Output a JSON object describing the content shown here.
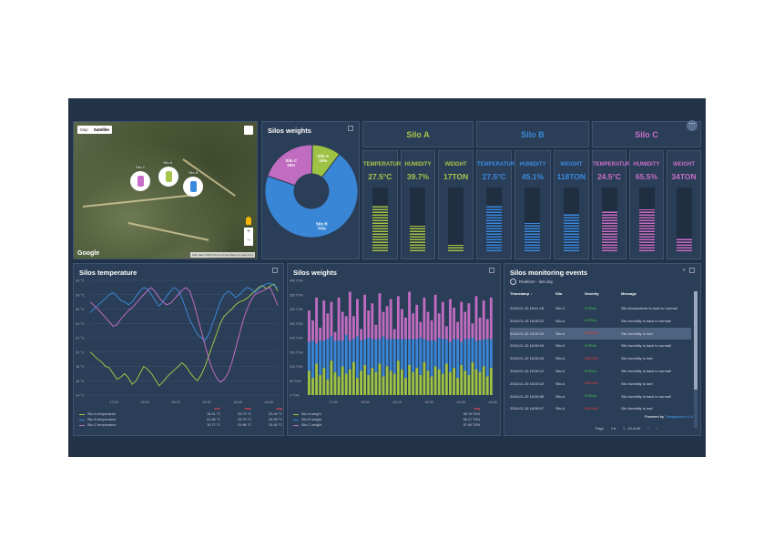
{
  "map": {
    "map_tab": "Map",
    "satellite_tab": "Satellite",
    "google_logo": "Google",
    "terms": "Map data ©2018 Terms of Use Report a map error",
    "markers": [
      {
        "label": "Silo C",
        "color": "#c86ec8"
      },
      {
        "label": "Silo A",
        "color": "#a6c44a"
      },
      {
        "label": "Silo B",
        "color": "#3a8ae0"
      }
    ]
  },
  "weights_donut": {
    "title": "Silos weights",
    "chart_data": {
      "type": "pie",
      "title": "Silos weights",
      "slices": [
        {
          "name": "Silo A",
          "percent": 10,
          "label": "Silo A\n10%",
          "color": "#9ec244"
        },
        {
          "name": "Silo B",
          "percent": 70,
          "label": "Silo B\n70%",
          "color": "#3a86d6"
        },
        {
          "name": "Silo C",
          "percent": 20,
          "label": "Silo C\n20%",
          "color": "#c06cc0"
        }
      ]
    }
  },
  "silos": [
    {
      "name": "Silo A",
      "color": "#a6c44a",
      "gauges": [
        {
          "label": "TEMPERATURE",
          "value": "27.5°C",
          "fill": 0.72
        },
        {
          "label": "HUMIDITY",
          "value": "39.7%",
          "fill": 0.4
        },
        {
          "label": "WEIGHT",
          "value": "17TON",
          "fill": 0.1
        }
      ]
    },
    {
      "name": "Silo B",
      "color": "#3a8ae0",
      "gauges": [
        {
          "label": "TEMPERATURE",
          "value": "27.5°C",
          "fill": 0.72
        },
        {
          "label": "HUMIDITY",
          "value": "45.1%",
          "fill": 0.45
        },
        {
          "label": "WEIGHT",
          "value": "118TON",
          "fill": 0.6
        }
      ]
    },
    {
      "name": "Silo C",
      "color": "#c86ec8",
      "gauges": [
        {
          "label": "TEMPERATURE",
          "value": "24.5°C",
          "fill": 0.64
        },
        {
          "label": "HUMIDITY",
          "value": "65.5%",
          "fill": 0.66
        },
        {
          "label": "WEIGHT",
          "value": "34TON",
          "fill": 0.2
        }
      ]
    }
  ],
  "temp_chart": {
    "title": "Silos temperature",
    "legend_headers": [
      "min",
      "max",
      "avg"
    ],
    "chart_data": {
      "type": "line",
      "title": "Silos temperature",
      "ylim": [
        14,
        30
      ],
      "yticks": [
        "14 °C",
        "16 °C",
        "18 °C",
        "20 °C",
        "22 °C",
        "24 °C",
        "26 °C",
        "28 °C",
        "30 °C"
      ],
      "xticks": [
        "17:00",
        "18:00",
        "18:15",
        "18:30",
        "18:45",
        "18:46"
      ],
      "series": [
        {
          "name": "Silo A temperature",
          "color": "#9ec244",
          "min": "15.01 °C",
          "max": "29.79 °C",
          "avg": "22.04 °C",
          "values": [
            20,
            19.5,
            19,
            18.6,
            18,
            17.8,
            17,
            16.2,
            16.5,
            17,
            16.4,
            15.5,
            16,
            17,
            18,
            17.6,
            17,
            16.2,
            15.3,
            15.8,
            16.5,
            17,
            17.5,
            18,
            18.5,
            18,
            17.2,
            16.5,
            16,
            16.8,
            18,
            19.5,
            21,
            22.5,
            24,
            25,
            25.5,
            26,
            26.6,
            27,
            27.2,
            27.5,
            28,
            28.5,
            29,
            29.3,
            28.8,
            29.2,
            29.5,
            28.5
          ]
        },
        {
          "name": "Silo B temperature",
          "color": "#3a86d6",
          "min": "21.45 °C",
          "max": "29.75 °C",
          "avg": "26.99 °C",
          "values": [
            25.5,
            26,
            26.5,
            27,
            27.5,
            28,
            28.3,
            27.8,
            27.2,
            27,
            26.6,
            27,
            27.8,
            28.5,
            29,
            28.8,
            28,
            27.2,
            26.4,
            27,
            27.8,
            28.5,
            29,
            28.6,
            27.5,
            26,
            24.5,
            23.5,
            22.5,
            22,
            21.6,
            22.5,
            24,
            25.5,
            27,
            28,
            28.5,
            28.2,
            27.6,
            28,
            28.6,
            29,
            28.8,
            28.3,
            28.8,
            29.2,
            29.5,
            29.6,
            29.3,
            29
          ]
        },
        {
          "name": "Silo C temperature",
          "color": "#c06cc0",
          "min": "15.77 °C",
          "max": "29.86 °C",
          "avg": "24.45 °C",
          "values": [
            27,
            26.5,
            26,
            25.4,
            24.8,
            24.2,
            23.6,
            23.8,
            24.6,
            25.2,
            25.8,
            26.2,
            26.8,
            27.4,
            28,
            28.6,
            29,
            28.4,
            27.6,
            27,
            26.6,
            26.8,
            27.4,
            28,
            28.6,
            29,
            28.5,
            27,
            25,
            23,
            21,
            19,
            17.5,
            16.4,
            15.8,
            16.2,
            17,
            18.5,
            20.5,
            22.5,
            24.5,
            26,
            27.2,
            28,
            28.3,
            28.5,
            28.8,
            29,
            27.8,
            26.5
          ]
        }
      ]
    }
  },
  "weight_chart": {
    "title": "Silos weights",
    "legend_headers": [
      "avg"
    ],
    "chart_data": {
      "type": "bar",
      "title": "Silos weights",
      "stacked": true,
      "ylim": [
        0,
        400
      ],
      "yticks": [
        "0 TON",
        "25 TON",
        "50 TON",
        "75 TON",
        "100 TON",
        "125 TON",
        "150 TON",
        "175 TON",
        "200 TON",
        "225 TON",
        "250 TON",
        "275 TON",
        "300 TON",
        "325 TON",
        "350 TON",
        "375 TON",
        "400 TON"
      ],
      "xticks": [
        "17:00",
        "18:00",
        "18:15",
        "18:30",
        "18:45",
        "18:46"
      ],
      "series": [
        {
          "name": "Silo A weight",
          "color": "#9ec244",
          "avg": "98.76 TON",
          "values": [
            85,
            60,
            110,
            70,
            95,
            55,
            120,
            80,
            65,
            100,
            75,
            90,
            115,
            60,
            85,
            105,
            70,
            95,
            80,
            110,
            65,
            100,
            85,
            75,
            120,
            90,
            60,
            105,
            80,
            95,
            70,
            115,
            85,
            65,
            100,
            90,
            75,
            110,
            80,
            95,
            60,
            105,
            85,
            70,
            115,
            90,
            80,
            100,
            65,
            95
          ]
        },
        {
          "name": "Silo B weight",
          "color": "#3a86d6",
          "avg": "96.17 TON",
          "values": [
            100,
            130,
            70,
            120,
            95,
            140,
            85,
            110,
            125,
            90,
            135,
            100,
            80,
            145,
            105,
            90,
            130,
            100,
            115,
            85,
            140,
            95,
            110,
            120,
            75,
            105,
            135,
            90,
            115,
            100,
            130,
            80,
            105,
            125,
            90,
            110,
            120,
            85,
            105,
            100,
            135,
            80,
            110,
            125,
            85,
            100,
            110,
            95,
            130,
            100
          ]
        },
        {
          "name": "Silo C weight",
          "color": "#c06cc0",
          "avg": "97.69 TON",
          "values": [
            110,
            70,
            160,
            45,
            140,
            90,
            120,
            30,
            150,
            100,
            65,
            170,
            80,
            130,
            40,
            155,
            95,
            125,
            50,
            160,
            85,
            115,
            140,
            35,
            150,
            105,
            75,
            165,
            90,
            120,
            55,
            145,
            100,
            70,
            160,
            85,
            130,
            45,
            150,
            110,
            60,
            140,
            95,
            125,
            50,
            155,
            80,
            135,
            70,
            145
          ]
        }
      ]
    }
  },
  "events": {
    "title": "Silos monitoring events",
    "realtime": "Realtime - last day",
    "columns": [
      "Timestamp",
      "Silo",
      "Severity",
      "Message"
    ],
    "rows": [
      {
        "ts": "2018-01-15 18:41:18",
        "silo": "Silo C",
        "sev": "NORMAL",
        "sev_color": "#3fbf3f",
        "msg": "Silo temperature is back to normal!"
      },
      {
        "ts": "2018-01-15 18:38:22",
        "silo": "Silo A",
        "sev": "NORMAL",
        "sev_color": "#3fbf3f",
        "msg": "Silo humidity is back to normal!"
      },
      {
        "ts": "2018-01-15 18:38:20",
        "silo": "Silo A",
        "sev": "WARNING",
        "sev_color": "#e23b3b",
        "msg": "Silo humidity is low!"
      },
      {
        "ts": "2018-01-15 18:38:16",
        "silo": "Silo A",
        "sev": "NORMAL",
        "sev_color": "#3fbf3f",
        "msg": "Silo humidity is back to normal!"
      },
      {
        "ts": "2018-01-15 18:38:15",
        "silo": "Silo A",
        "sev": "WARNING",
        "sev_color": "#e23b3b",
        "msg": "Silo humidity is low!"
      },
      {
        "ts": "2018-01-15 18:38:12",
        "silo": "Silo A",
        "sev": "NORMAL",
        "sev_color": "#3fbf3f",
        "msg": "Silo humidity is back to normal!"
      },
      {
        "ts": "2018-01-15 18:38:10",
        "silo": "Silo A",
        "sev": "WARNING",
        "sev_color": "#e23b3b",
        "msg": "Silo humidity is low!"
      },
      {
        "ts": "2018-01-15 18:38:08",
        "silo": "Silo A",
        "sev": "NORMAL",
        "sev_color": "#3fbf3f",
        "msg": "Silo humidity is back to normal!"
      },
      {
        "ts": "2018-01-15 18:38:07",
        "silo": "Silo A",
        "sev": "WARNING",
        "sev_color": "#e23b3b",
        "msg": "Silo humidity is low!"
      }
    ],
    "selected_row": 2,
    "page_label": "Page",
    "page_value": "1",
    "range": "1 - 10 of 90",
    "powered_prefix": "Powered by",
    "powered_brand": "Thingsboard v1.4"
  }
}
